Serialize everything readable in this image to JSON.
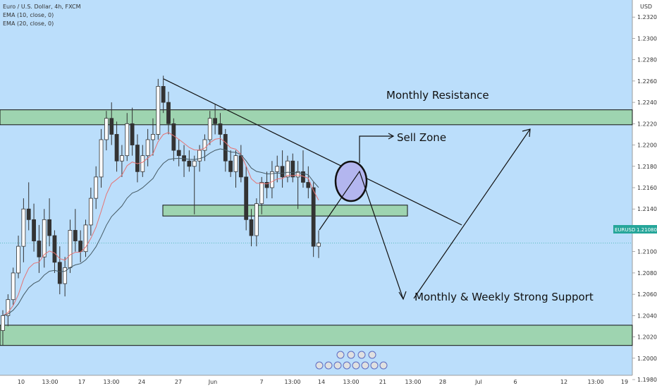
{
  "legend": {
    "symbol_line": "Euro / U.S. Dollar, 4h, FXCM",
    "ema10": "EMA (10, close, 0)",
    "ema20": "EMA (20, close, 0)"
  },
  "currency_label": "USD",
  "price_tag": {
    "symbol": "EURUSD",
    "value": "1.21080",
    "bg": "#26a69a"
  },
  "colors": {
    "background": "#bbdefb",
    "zone_fill": "#9ed4b0",
    "candle_up": "#26a69a",
    "candle_down": "#ef5350",
    "ema10": "#e57373",
    "ema20": "#455a64"
  },
  "annotations": {
    "monthly_resistance": "Monthly Resistance",
    "sell_zone": "Sell Zone",
    "support": "Monthly  & Weekly Strong Support"
  },
  "chart_data": {
    "type": "candlestick",
    "ylim": [
      1.1984,
      1.2336
    ],
    "y_ticks": [
      "1.23200",
      "1.23000",
      "1.22800",
      "1.22600",
      "1.22400",
      "1.22200",
      "1.22000",
      "1.21800",
      "1.21600",
      "1.21400",
      "1.21200",
      "1.21000",
      "1.20800",
      "1.20600",
      "1.20400",
      "1.20200",
      "1.20000",
      "1.19800"
    ],
    "x_ticks": [
      "10",
      "13:00",
      "17",
      "13:00",
      "24",
      "27",
      "Jun",
      "7",
      "13:00",
      "14",
      "13:00",
      "21",
      "13:00",
      "28",
      "Jul",
      "6",
      "12",
      "13:00",
      "19"
    ],
    "price_levels": {
      "monthly_resistance_zone": [
        1.2219,
        1.2233
      ],
      "middle_zone": [
        1.21334,
        1.21436
      ],
      "support_zone": [
        1.2012,
        1.2031
      ]
    },
    "trendline": {
      "from_price": 1.2262,
      "to_price": 1.2125
    },
    "last_price": 1.2108,
    "candles": [
      [
        1.2026,
        1.2045,
        1.2012,
        1.204
      ],
      [
        1.204,
        1.206,
        1.203,
        1.2055
      ],
      [
        1.2055,
        1.2085,
        1.205,
        1.208
      ],
      [
        1.208,
        1.2115,
        1.2075,
        1.2105
      ],
      [
        1.2105,
        1.215,
        1.209,
        1.214
      ],
      [
        1.214,
        1.2165,
        1.212,
        1.213
      ],
      [
        1.213,
        1.2145,
        1.21,
        1.211
      ],
      [
        1.211,
        1.2125,
        1.208,
        1.2095
      ],
      [
        1.2095,
        1.214,
        1.2085,
        1.213
      ],
      [
        1.213,
        1.215,
        1.2105,
        1.2115
      ],
      [
        1.2115,
        1.212,
        1.208,
        1.209
      ],
      [
        1.209,
        1.2105,
        1.206,
        1.207
      ],
      [
        1.207,
        1.2095,
        1.2058,
        1.2085
      ],
      [
        1.2085,
        1.213,
        1.208,
        1.212
      ],
      [
        1.212,
        1.214,
        1.21,
        1.211
      ],
      [
        1.211,
        1.212,
        1.209,
        1.21
      ],
      [
        1.21,
        1.213,
        1.2095,
        1.2125
      ],
      [
        1.2125,
        1.216,
        1.2115,
        1.215
      ],
      [
        1.215,
        1.218,
        1.214,
        1.217
      ],
      [
        1.217,
        1.2215,
        1.216,
        1.2205
      ],
      [
        1.2205,
        1.2232,
        1.2195,
        1.2225
      ],
      [
        1.2225,
        1.224,
        1.22,
        1.221
      ],
      [
        1.221,
        1.2222,
        1.2175,
        1.2185
      ],
      [
        1.2185,
        1.22,
        1.217,
        1.219
      ],
      [
        1.219,
        1.223,
        1.2185,
        1.222
      ],
      [
        1.222,
        1.2235,
        1.219,
        1.22
      ],
      [
        1.22,
        1.221,
        1.2165,
        1.2175
      ],
      [
        1.2175,
        1.22,
        1.217,
        1.219
      ],
      [
        1.219,
        1.2215,
        1.218,
        1.2205
      ],
      [
        1.2205,
        1.2225,
        1.219,
        1.221
      ],
      [
        1.221,
        1.2262,
        1.2205,
        1.2255
      ],
      [
        1.2255,
        1.2265,
        1.223,
        1.224
      ],
      [
        1.224,
        1.225,
        1.221,
        1.222
      ],
      [
        1.222,
        1.2225,
        1.2185,
        1.2195
      ],
      [
        1.2195,
        1.2205,
        1.218,
        1.219
      ],
      [
        1.219,
        1.22,
        1.217,
        1.2185
      ],
      [
        1.2185,
        1.2195,
        1.2175,
        1.218
      ],
      [
        1.218,
        1.219,
        1.2135,
        1.2185
      ],
      [
        1.2185,
        1.22,
        1.2175,
        1.2195
      ],
      [
        1.2195,
        1.221,
        1.2185,
        1.2205
      ],
      [
        1.2205,
        1.2232,
        1.22,
        1.2225
      ],
      [
        1.2225,
        1.2238,
        1.221,
        1.222
      ],
      [
        1.222,
        1.223,
        1.22,
        1.221
      ],
      [
        1.221,
        1.2215,
        1.2175,
        1.2185
      ],
      [
        1.2185,
        1.2195,
        1.217,
        1.2175
      ],
      [
        1.2175,
        1.2195,
        1.216,
        1.219
      ],
      [
        1.219,
        1.22,
        1.2165,
        1.217
      ],
      [
        1.217,
        1.218,
        1.212,
        1.213
      ],
      [
        1.213,
        1.214,
        1.2105,
        1.2115
      ],
      [
        1.2115,
        1.215,
        1.2105,
        1.2145
      ],
      [
        1.2145,
        1.217,
        1.2135,
        1.2165
      ],
      [
        1.2165,
        1.2175,
        1.215,
        1.216
      ],
      [
        1.216,
        1.2185,
        1.215,
        1.2175
      ],
      [
        1.2175,
        1.219,
        1.2165,
        1.218
      ],
      [
        1.218,
        1.2195,
        1.216,
        1.217
      ],
      [
        1.217,
        1.219,
        1.2165,
        1.2185
      ],
      [
        1.2185,
        1.2192,
        1.2165,
        1.217
      ],
      [
        1.217,
        1.2185,
        1.214,
        1.2175
      ],
      [
        1.2175,
        1.2195,
        1.216,
        1.2165
      ],
      [
        1.2165,
        1.218,
        1.215,
        1.216
      ],
      [
        1.216,
        1.2165,
        1.2095,
        1.2105
      ],
      [
        1.2105,
        1.212,
        1.2094,
        1.2108
      ]
    ]
  }
}
